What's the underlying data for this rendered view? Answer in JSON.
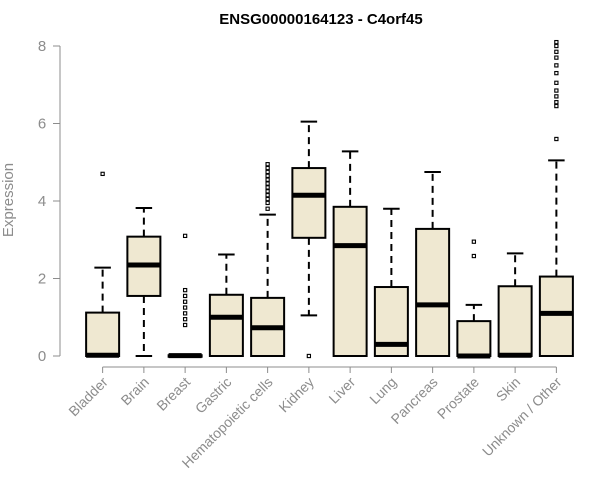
{
  "chart_data": {
    "type": "box",
    "title": "ENSG00000164123 - C4orf45",
    "xlabel": "",
    "ylabel": "Expression",
    "ylim": [
      0,
      8
    ],
    "yticks": [
      0,
      2,
      4,
      6,
      8
    ],
    "grid": false,
    "legend": "none",
    "colors": {
      "box_fill": "#efe8d1",
      "stroke": "#000000",
      "axis": "#8c8c8c",
      "tick_text": "#8c8c8c"
    },
    "categories": [
      "Bladder",
      "Brain",
      "Breast",
      "Gastric",
      "Hematopoietic cells",
      "Kidney",
      "Liver",
      "Lung",
      "Pancreas",
      "Prostate",
      "Skin",
      "Unknown / Other"
    ],
    "boxes": [
      {
        "category": "Bladder",
        "min": 0,
        "q1": 0,
        "median": 0.02,
        "q3": 1.12,
        "max": 2.28,
        "outliers": [
          4.7
        ]
      },
      {
        "category": "Brain",
        "min": 0,
        "q1": 1.55,
        "median": 2.35,
        "q3": 3.08,
        "max": 3.82,
        "outliers": []
      },
      {
        "category": "Breast",
        "min": 0,
        "q1": 0,
        "median": 0.01,
        "q3": 0.02,
        "max": 0.04,
        "outliers": [
          0.8,
          0.95,
          1.1,
          1.25,
          1.4,
          1.55,
          1.7,
          3.1
        ]
      },
      {
        "category": "Gastric",
        "min": 0,
        "q1": 0,
        "median": 1.0,
        "q3": 1.58,
        "max": 2.62,
        "outliers": []
      },
      {
        "category": "Hematopoietic cells",
        "min": 0,
        "q1": 0,
        "median": 0.73,
        "q3": 1.5,
        "max": 3.65,
        "outliers": [
          3.8,
          3.95,
          4.05,
          4.15,
          4.25,
          4.35,
          4.45,
          4.55,
          4.65,
          4.75,
          4.85,
          4.95
        ]
      },
      {
        "category": "Kidney",
        "min": 1.05,
        "q1": 3.05,
        "median": 4.15,
        "q3": 4.85,
        "max": 6.05,
        "outliers": [
          0.0
        ]
      },
      {
        "category": "Liver",
        "min": 0,
        "q1": 0,
        "median": 2.85,
        "q3": 3.85,
        "max": 5.28,
        "outliers": []
      },
      {
        "category": "Lung",
        "min": 0,
        "q1": 0,
        "median": 0.3,
        "q3": 1.78,
        "max": 3.8,
        "outliers": []
      },
      {
        "category": "Pancreas",
        "min": 0,
        "q1": 0,
        "median": 1.32,
        "q3": 3.28,
        "max": 4.75,
        "outliers": []
      },
      {
        "category": "Prostate",
        "min": 0,
        "q1": 0,
        "median": 0.0,
        "q3": 0.9,
        "max": 1.32,
        "outliers": [
          2.58,
          2.95
        ]
      },
      {
        "category": "Skin",
        "min": 0,
        "q1": 0,
        "median": 0.02,
        "q3": 1.8,
        "max": 2.65,
        "outliers": []
      },
      {
        "category": "Unknown / Other",
        "min": 0,
        "q1": 0,
        "median": 1.1,
        "q3": 2.05,
        "max": 5.05,
        "outliers": [
          5.6,
          6.45,
          6.55,
          6.7,
          6.85,
          7.05,
          7.3,
          7.5,
          7.7,
          7.85,
          8.0,
          8.1
        ]
      }
    ]
  }
}
